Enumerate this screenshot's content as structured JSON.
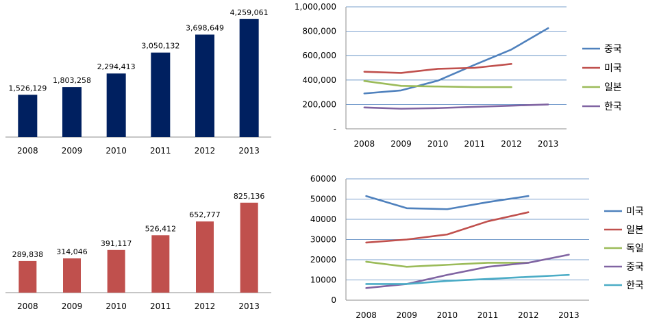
{
  "chart_data": [
    {
      "type": "bar",
      "categories": [
        "2008",
        "2009",
        "2010",
        "2011",
        "2012",
        "2013"
      ],
      "values": [
        1526129,
        1803258,
        2294413,
        3050132,
        3698649,
        4259061
      ],
      "data_labels": [
        "1,526,129",
        "1,803,258",
        "2,294,413",
        "3,050,132",
        "3,698,649",
        "4,259,061"
      ],
      "color": "#002060",
      "ylim": [
        0,
        4700000
      ]
    },
    {
      "type": "line",
      "x": [
        "2008",
        "2009",
        "2010",
        "2011",
        "2012",
        "2013"
      ],
      "ylim": [
        0,
        1000000
      ],
      "y_ticks": [
        0,
        200000,
        400000,
        600000,
        800000,
        1000000
      ],
      "y_tick_labels": [
        "-",
        "200,000",
        "400,000",
        "600,000",
        "800,000",
        "1,000,000"
      ],
      "grid": true,
      "legend_position": "right",
      "series": [
        {
          "name": "중국",
          "color": "#4F81BD",
          "values": [
            290000,
            315000,
            395000,
            525000,
            650000,
            825000
          ]
        },
        {
          "name": "미국",
          "color": "#C0504D",
          "values": [
            468000,
            458000,
            492000,
            500000,
            532000,
            null
          ]
        },
        {
          "name": "일본",
          "color": "#9BBB59",
          "values": [
            392000,
            352000,
            347000,
            342000,
            342000,
            null
          ]
        },
        {
          "name": "한국",
          "color": "#8064A2",
          "values": [
            175000,
            165000,
            170000,
            180000,
            190000,
            200000
          ]
        }
      ]
    },
    {
      "type": "bar",
      "categories": [
        "2008",
        "2009",
        "2010",
        "2011",
        "2012",
        "2013"
      ],
      "values": [
        289838,
        314046,
        391117,
        526412,
        652777,
        825136
      ],
      "data_labels": [
        "289,838",
        "314,046",
        "391,117",
        "526,412",
        "652,777",
        "825,136"
      ],
      "color": "#C0504D",
      "ylim": [
        0,
        1050000
      ]
    },
    {
      "type": "line",
      "x": [
        "2008",
        "2009",
        "2010",
        "2011",
        "2012",
        "2013"
      ],
      "ylim": [
        0,
        60000
      ],
      "y_ticks": [
        0,
        10000,
        20000,
        30000,
        40000,
        50000,
        60000
      ],
      "y_tick_labels": [
        "0",
        "10000",
        "20000",
        "30000",
        "40000",
        "50000",
        "60000"
      ],
      "grid": true,
      "legend_position": "right",
      "series": [
        {
          "name": "미국",
          "color": "#4F81BD",
          "values": [
            51500,
            45500,
            45000,
            48500,
            51500,
            null
          ]
        },
        {
          "name": "일본",
          "color": "#C0504D",
          "values": [
            28500,
            30000,
            32500,
            39000,
            43500,
            null
          ]
        },
        {
          "name": "독일",
          "color": "#9BBB59",
          "values": [
            19000,
            16500,
            17500,
            18500,
            18500,
            null
          ]
        },
        {
          "name": "중국",
          "color": "#8064A2",
          "values": [
            6000,
            8000,
            12500,
            16500,
            18500,
            22500
          ]
        },
        {
          "name": "한국",
          "color": "#4BACC6",
          "values": [
            8000,
            8000,
            9500,
            10500,
            11500,
            12500
          ]
        }
      ]
    }
  ]
}
